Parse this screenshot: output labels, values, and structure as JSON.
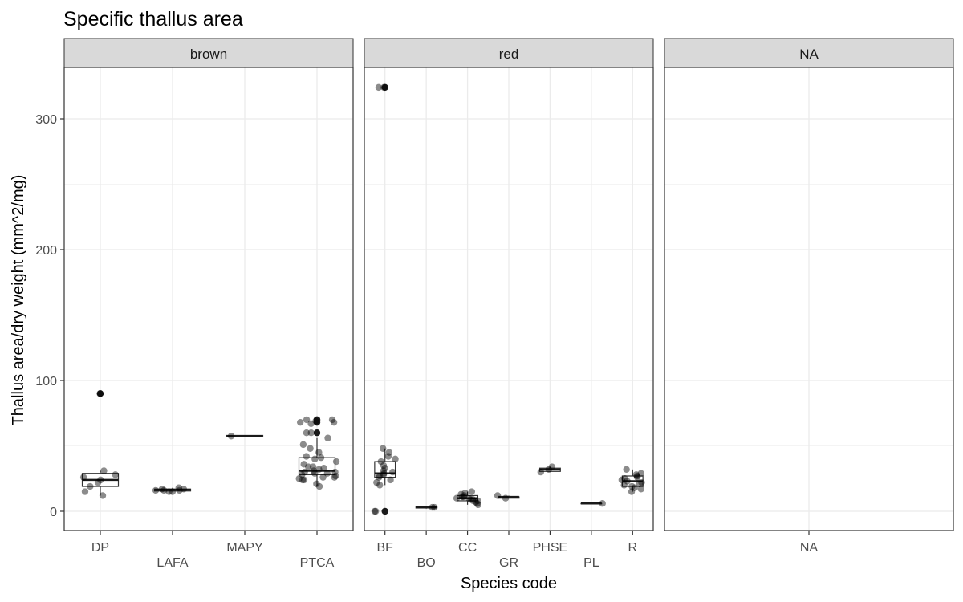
{
  "chart_data": {
    "type": "boxplot",
    "title": "Specific thallus area",
    "xlabel": "Species code",
    "ylabel": "Thallus area/dry weight (mm^2/mg)",
    "ylim": [
      -16,
      340
    ],
    "yticks": [
      0,
      100,
      200,
      300
    ],
    "grid": true,
    "panels": [
      {
        "strip": "brown",
        "categories": [
          {
            "code": "DP",
            "box": {
              "min": 12,
              "q1": 19,
              "median": 24,
              "q3": 29,
              "max": 31
            },
            "outliers": [
              90
            ],
            "points": [
              90,
              12,
              15,
              19,
              22,
              24,
              26,
              28,
              31
            ]
          },
          {
            "code": "LAFA",
            "box": {
              "min": 15,
              "q1": 15.5,
              "median": 16.5,
              "q3": 17,
              "max": 18
            },
            "outliers": [],
            "points": [
              15,
              16,
              17,
              18,
              16,
              15,
              17,
              16
            ]
          },
          {
            "code": "MAPY",
            "box": {
              "min": 57,
              "q1": 57,
              "median": 57.5,
              "q3": 58,
              "max": 58
            },
            "outliers": [],
            "points": [
              57.5
            ]
          },
          {
            "code": "PTCA",
            "box": {
              "min": 19,
              "q1": 28,
              "median": 31,
              "q3": 41,
              "max": 56
            },
            "outliers": [
              60,
              68,
              70,
              69,
              70
            ],
            "points": [
              19,
              21,
              24,
              25,
              26,
              27,
              28,
              29,
              30,
              30,
              31,
              32,
              33,
              34,
              36,
              38,
              40,
              42,
              45,
              48,
              51,
              56,
              60,
              67,
              68,
              68,
              70,
              70,
              69,
              60,
              41,
              34,
              29,
              26,
              24
            ]
          }
        ]
      },
      {
        "strip": "red",
        "categories": [
          {
            "code": "BF",
            "box": {
              "min": 20,
              "q1": 26,
              "median": 29,
              "q3": 38,
              "max": 48
            },
            "outliers": [
              324,
              0
            ],
            "points": [
              324,
              324,
              0,
              0,
              48,
              45,
              42,
              40,
              38,
              35,
              33,
              31,
              30,
              29,
              28,
              27,
              26,
              24,
              22,
              20
            ]
          },
          {
            "code": "BO",
            "box": {
              "min": 2,
              "q1": 2.5,
              "median": 3,
              "q3": 3.5,
              "max": 4
            },
            "outliers": [],
            "points": [
              3,
              3
            ]
          },
          {
            "code": "CC",
            "box": {
              "min": 5,
              "q1": 8,
              "median": 10,
              "q3": 12,
              "max": 15
            },
            "outliers": [],
            "points": [
              5,
              6,
              7,
              8,
              9,
              10,
              10,
              11,
              12,
              13,
              14,
              15,
              9,
              11,
              8
            ]
          },
          {
            "code": "GR",
            "box": {
              "min": 10,
              "q1": 10,
              "median": 11,
              "q3": 11,
              "max": 12
            },
            "outliers": [],
            "points": [
              12,
              10
            ]
          },
          {
            "code": "PHSE",
            "box": {
              "min": 30,
              "q1": 30.5,
              "median": 32,
              "q3": 33,
              "max": 34
            },
            "outliers": [],
            "points": [
              34,
              32,
              30
            ]
          },
          {
            "code": "PL",
            "box": {
              "min": 6,
              "q1": 6,
              "median": 6,
              "q3": 6,
              "max": 6
            },
            "outliers": [],
            "points": [
              6
            ]
          },
          {
            "code": "R",
            "box": {
              "min": 15,
              "q1": 19,
              "median": 23,
              "q3": 27,
              "max": 32
            },
            "outliers": [],
            "points": [
              15,
              17,
              18,
              19,
              20,
              21,
              22,
              23,
              24,
              25,
              26,
              27,
              28,
              29,
              32
            ]
          }
        ]
      },
      {
        "strip": "NA",
        "categories": [
          {
            "code": "NA",
            "box": null,
            "outliers": [],
            "points": []
          }
        ]
      }
    ]
  }
}
